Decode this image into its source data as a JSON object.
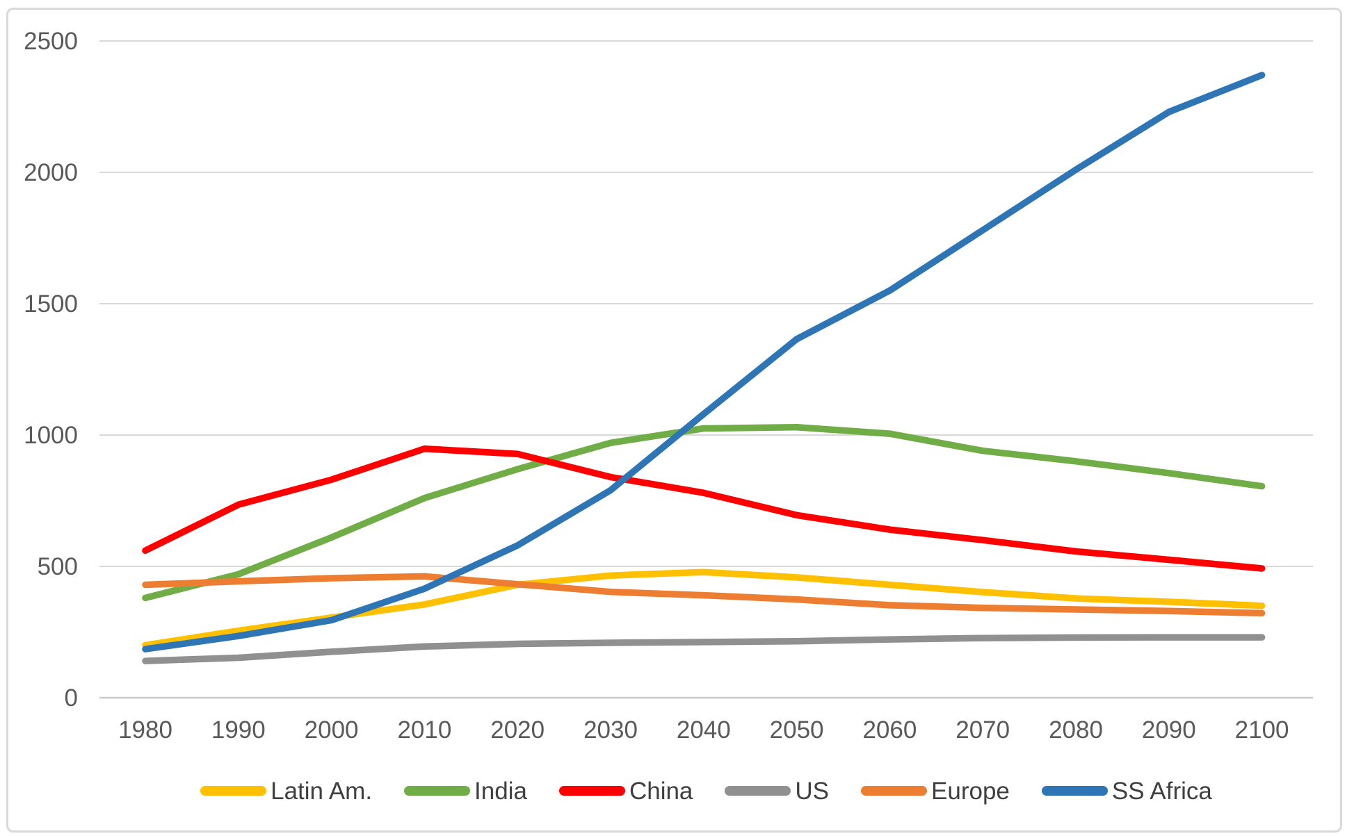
{
  "chart_data": {
    "type": "line",
    "title": "",
    "xlabel": "",
    "ylabel": "",
    "categories": [
      "1980",
      "1990",
      "2000",
      "2010",
      "2020",
      "2030",
      "2040",
      "2050",
      "2060",
      "2070",
      "2080",
      "2090",
      "2100"
    ],
    "series": [
      {
        "name": "Latin Am.",
        "color": "#FFC000",
        "values": [
          200,
          255,
          305,
          355,
          430,
          465,
          478,
          458,
          430,
          402,
          378,
          365,
          350
        ]
      },
      {
        "name": "India",
        "color": "#70AD47",
        "values": [
          380,
          470,
          610,
          760,
          870,
          970,
          1025,
          1030,
          1005,
          940,
          900,
          855,
          805
        ]
      },
      {
        "name": "China",
        "color": "#FF0000",
        "values": [
          560,
          735,
          830,
          948,
          928,
          840,
          780,
          695,
          640,
          600,
          557,
          525,
          492
        ]
      },
      {
        "name": "US",
        "color": "#909090",
        "values": [
          140,
          152,
          175,
          195,
          205,
          209,
          212,
          215,
          222,
          227,
          229,
          230,
          230
        ]
      },
      {
        "name": "Europe",
        "color": "#ED7D31",
        "values": [
          430,
          443,
          455,
          462,
          432,
          403,
          390,
          374,
          352,
          342,
          336,
          330,
          322
        ]
      },
      {
        "name": "SS Africa",
        "color": "#2E75B6",
        "values": [
          185,
          235,
          295,
          415,
          580,
          790,
          1080,
          1365,
          1550,
          1780,
          2010,
          2230,
          2370
        ]
      }
    ],
    "ylim": [
      0,
      2500
    ],
    "y_ticks": [
      0,
      500,
      1000,
      1500,
      2000,
      2500
    ],
    "grid": true,
    "legend_position": "bottom"
  },
  "frame": {
    "border_color": "#D9D9D9",
    "gridline_color": "#D9D9D9",
    "baseline_color": "#C9C9C9",
    "background": "#FFFFFF"
  },
  "axis": {
    "tick_color": "#595959"
  }
}
